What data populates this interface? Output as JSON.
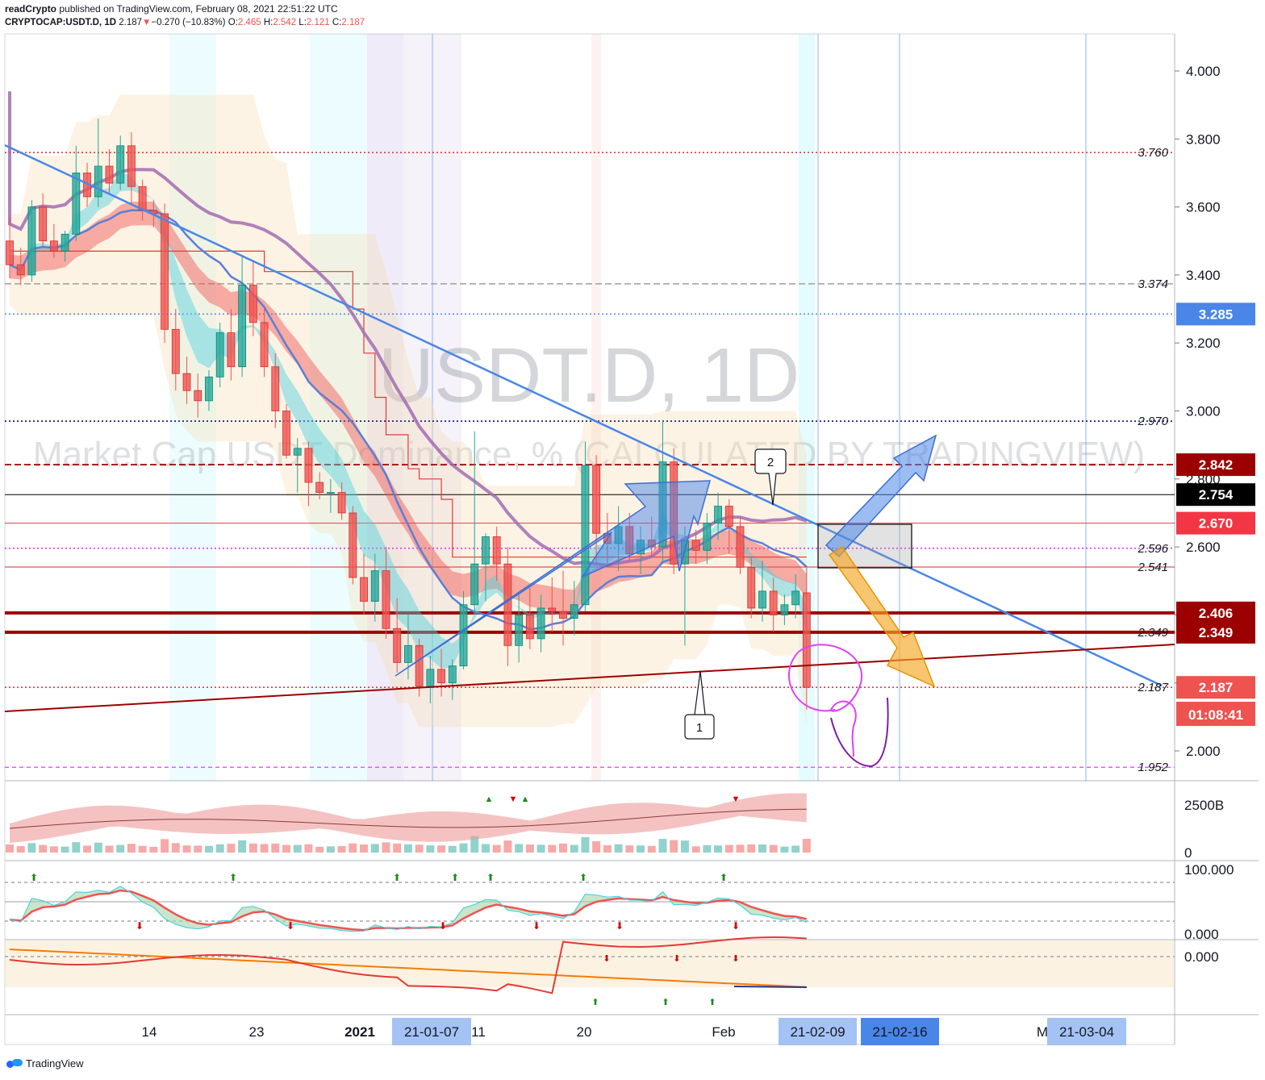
{
  "header": {
    "publisher": "readCrypto",
    "published_text": "published on TradingView.com, February 08, 2021 22:51:22 UTC",
    "symbol": "CRYPTOCAP:USDT.D, 1D",
    "price": "2.187",
    "change_arrow": "▼",
    "change": "−0.270 (−10.83%)",
    "o_label": "O:",
    "o_value": "2.465",
    "h_label": "H:",
    "h_value": "2.542",
    "l_label": "L:",
    "l_value": "2.121",
    "c_label": "C:",
    "c_value": "2.187"
  },
  "watermark": {
    "symbol": "USDT.D, 1D",
    "description": "Market Cap USDT Dominance, % (CALCULATED BY TRADINGVIEW)"
  },
  "footer": {
    "brand": "TradingView",
    "logo_icon": "tradingview-logo-icon"
  },
  "colors": {
    "up": "#26a69a",
    "down": "#ef5350",
    "trendline": "#4a86e8",
    "ma_purple": "#a36bb3",
    "support": "#9c0000",
    "orange_arrow": "#f5a623",
    "blue_arrow": "#4a86e8",
    "magenta": "#e040fb"
  },
  "chart_data": {
    "type": "candlestick",
    "price_axis": {
      "ticks": [
        "4.000",
        "3.800",
        "3.600",
        "3.400",
        "3.200",
        "3.000",
        "2.800",
        "2.600",
        "2.400",
        "2.200",
        "2.000"
      ]
    },
    "time_axis": {
      "labels": [
        "14",
        "23",
        "2021",
        "11",
        "20",
        "Feb",
        "M"
      ],
      "highlighted": [
        "21-01-07",
        "21-02-09",
        "21-02-16",
        "21-03-04"
      ]
    },
    "level_labels": [
      "3.760",
      "3.374",
      "2.970",
      "2.596",
      "2.541",
      "2.349",
      "2.187",
      "1.952"
    ],
    "price_tags": [
      {
        "label": "3.285",
        "value": 3.285,
        "color": "#4a86e8"
      },
      {
        "label": "2.842",
        "value": 2.842,
        "color": "#9c0000"
      },
      {
        "label": "2.754",
        "value": 2.754,
        "color": "#000000"
      },
      {
        "label": "2.670",
        "value": 2.67,
        "color": "#f23645"
      },
      {
        "label": "2.406",
        "value": 2.406,
        "color": "#9c0000"
      },
      {
        "label": "2.349",
        "value": 2.349,
        "color": "#9c0000"
      },
      {
        "label": "2.187",
        "value": 2.187,
        "color": "#ef5350"
      }
    ],
    "countdown": "01:08:41",
    "callouts": [
      "1",
      "2"
    ],
    "candles": [
      [
        3.5,
        3.57,
        3.39,
        3.43
      ],
      [
        3.43,
        3.48,
        3.37,
        3.4
      ],
      [
        3.4,
        3.62,
        3.38,
        3.6
      ],
      [
        3.6,
        3.64,
        3.48,
        3.5
      ],
      [
        3.5,
        3.55,
        3.45,
        3.47
      ],
      [
        3.47,
        3.53,
        3.44,
        3.52
      ],
      [
        3.52,
        3.78,
        3.5,
        3.7
      ],
      [
        3.7,
        3.73,
        3.6,
        3.63
      ],
      [
        3.63,
        3.86,
        3.6,
        3.72
      ],
      [
        3.72,
        3.77,
        3.64,
        3.67
      ],
      [
        3.67,
        3.81,
        3.65,
        3.78
      ],
      [
        3.78,
        3.82,
        3.61,
        3.66
      ],
      [
        3.66,
        3.68,
        3.56,
        3.59
      ],
      [
        3.59,
        3.62,
        3.54,
        3.58
      ],
      [
        3.58,
        3.61,
        3.2,
        3.24
      ],
      [
        3.24,
        3.3,
        3.06,
        3.11
      ],
      [
        3.11,
        3.16,
        3.02,
        3.06
      ],
      [
        3.06,
        3.11,
        2.98,
        3.03
      ],
      [
        3.03,
        3.12,
        3.0,
        3.1
      ],
      [
        3.1,
        3.26,
        3.07,
        3.23
      ],
      [
        3.23,
        3.3,
        3.09,
        3.13
      ],
      [
        3.13,
        3.46,
        3.1,
        3.37
      ],
      [
        3.37,
        3.44,
        3.22,
        3.26
      ],
      [
        3.26,
        3.3,
        3.1,
        3.13
      ],
      [
        3.13,
        3.17,
        2.95,
        3.0
      ],
      [
        3.0,
        3.02,
        2.86,
        2.87
      ],
      [
        2.87,
        2.92,
        2.76,
        2.89
      ],
      [
        2.89,
        2.91,
        2.72,
        2.79
      ],
      [
        2.79,
        2.82,
        2.74,
        2.76
      ],
      [
        2.76,
        2.8,
        2.7,
        2.76
      ],
      [
        2.76,
        2.79,
        2.68,
        2.7
      ],
      [
        2.7,
        2.72,
        2.49,
        2.51
      ],
      [
        2.51,
        2.58,
        2.4,
        2.44
      ],
      [
        2.44,
        2.58,
        2.38,
        2.53
      ],
      [
        2.53,
        2.6,
        2.33,
        2.36
      ],
      [
        2.36,
        2.45,
        2.23,
        2.26
      ],
      [
        2.26,
        2.4,
        2.21,
        2.31
      ],
      [
        2.31,
        2.33,
        2.16,
        2.19
      ],
      [
        2.19,
        2.28,
        2.14,
        2.24
      ],
      [
        2.24,
        2.3,
        2.16,
        2.2
      ],
      [
        2.2,
        2.27,
        2.15,
        2.25
      ],
      [
        2.25,
        2.47,
        2.24,
        2.43
      ],
      [
        2.43,
        2.94,
        2.4,
        2.55
      ],
      [
        2.55,
        2.64,
        2.44,
        2.63
      ],
      [
        2.63,
        2.66,
        2.5,
        2.55
      ],
      [
        2.55,
        2.6,
        2.25,
        2.31
      ],
      [
        2.31,
        2.46,
        2.26,
        2.4
      ],
      [
        2.4,
        2.48,
        2.3,
        2.33
      ],
      [
        2.33,
        2.46,
        2.29,
        2.42
      ],
      [
        2.42,
        2.51,
        2.35,
        2.41
      ],
      [
        2.41,
        2.53,
        2.31,
        2.39
      ],
      [
        2.39,
        2.5,
        2.34,
        2.43
      ],
      [
        2.43,
        2.91,
        2.41,
        2.84
      ],
      [
        2.84,
        2.87,
        2.55,
        2.64
      ],
      [
        2.64,
        2.7,
        2.55,
        2.61
      ],
      [
        2.61,
        2.72,
        2.53,
        2.66
      ],
      [
        2.66,
        2.7,
        2.56,
        2.58
      ],
      [
        2.58,
        2.66,
        2.52,
        2.62
      ],
      [
        2.62,
        2.69,
        2.57,
        2.6
      ],
      [
        2.6,
        2.97,
        2.55,
        2.85
      ],
      [
        2.85,
        2.89,
        2.52,
        2.55
      ],
      [
        2.55,
        2.66,
        2.31,
        2.62
      ],
      [
        2.62,
        2.65,
        2.55,
        2.59
      ],
      [
        2.59,
        2.7,
        2.55,
        2.67
      ],
      [
        2.67,
        2.76,
        2.62,
        2.72
      ],
      [
        2.72,
        2.74,
        2.58,
        2.66
      ],
      [
        2.66,
        2.69,
        2.52,
        2.54
      ],
      [
        2.54,
        2.57,
        2.39,
        2.42
      ],
      [
        2.42,
        2.56,
        2.38,
        2.47
      ],
      [
        2.47,
        2.51,
        2.35,
        2.4
      ],
      [
        2.4,
        2.46,
        2.37,
        2.43
      ],
      [
        2.43,
        2.52,
        2.39,
        2.47
      ],
      [
        2.465,
        2.542,
        2.121,
        2.187
      ]
    ],
    "volume_axis": {
      "ticks": [
        "2500B",
        "0"
      ]
    },
    "oscillator_axis": {
      "ticks": [
        "100.000",
        "0.000"
      ]
    },
    "bottom_axis": {
      "ticks": [
        "0.000"
      ]
    }
  }
}
